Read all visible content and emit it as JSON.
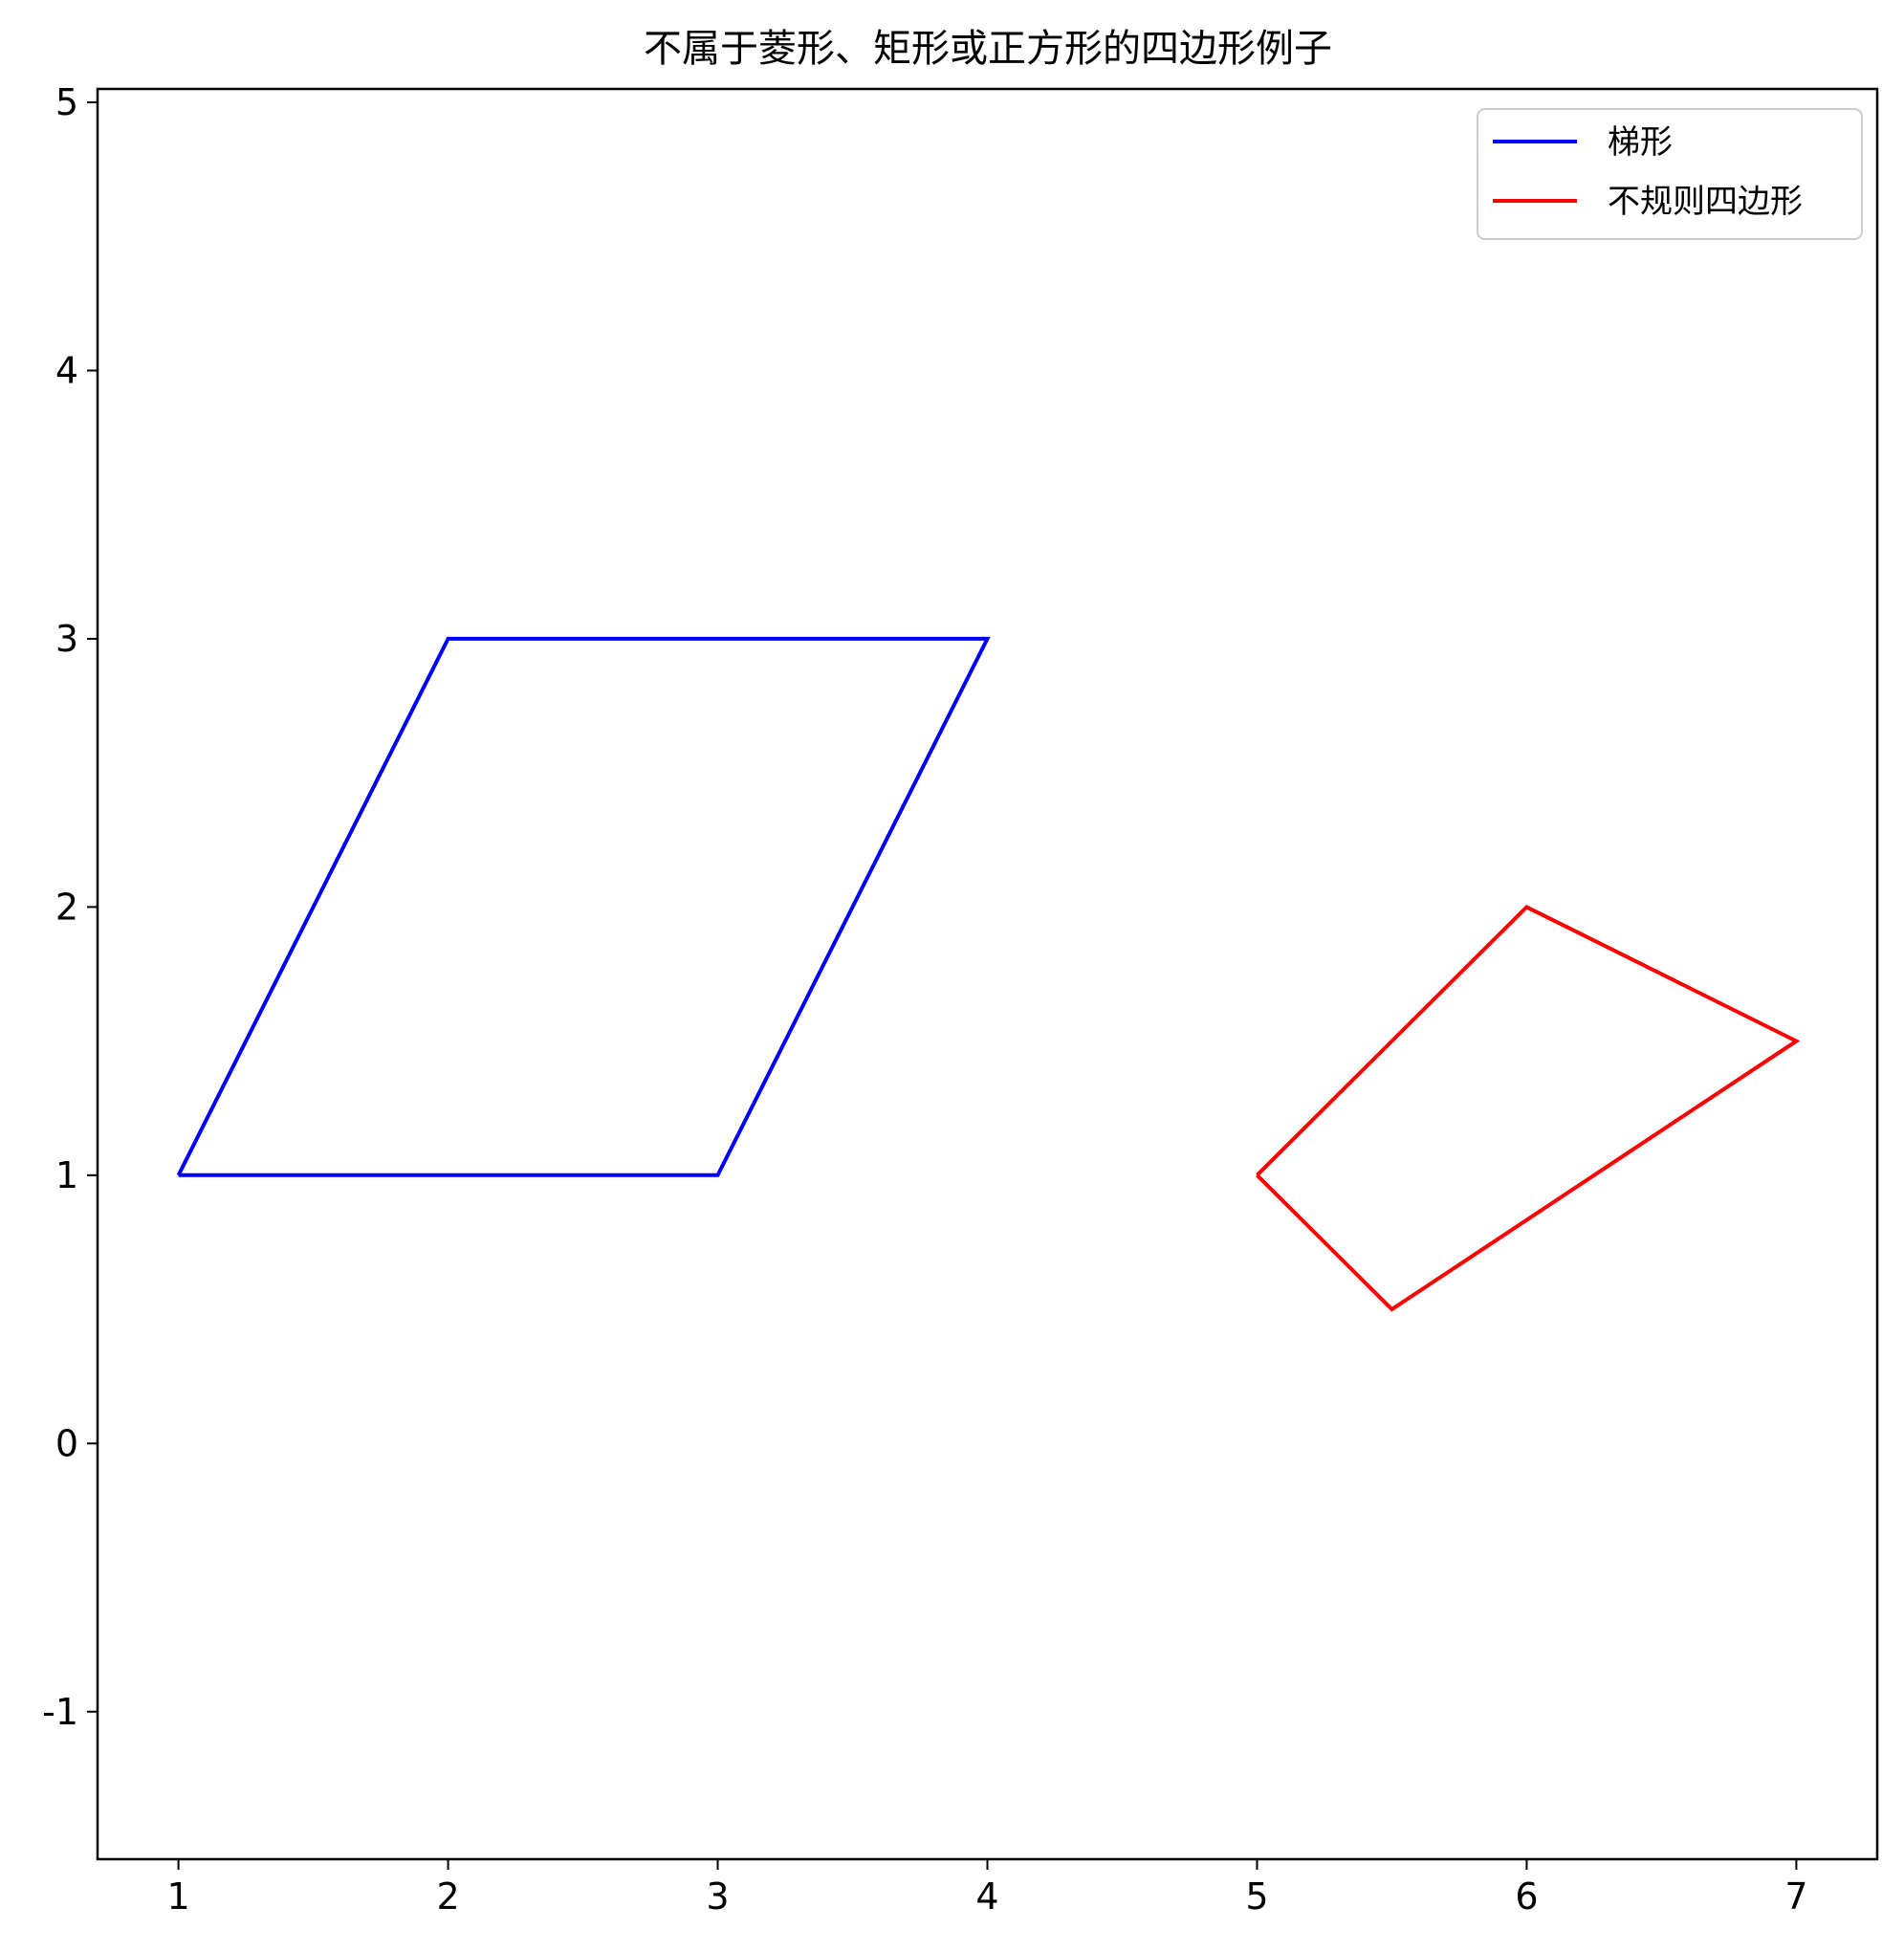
{
  "chart_data": {
    "type": "line",
    "title": "不属于菱形、矩形或正方形的四边形例子",
    "xlabel": "",
    "ylabel": "",
    "xlim": [
      0.7,
      7.3
    ],
    "ylim": [
      -1.55,
      5.05
    ],
    "xticks": [
      1,
      2,
      3,
      4,
      5,
      6,
      7
    ],
    "yticks": [
      -1,
      0,
      1,
      2,
      3,
      4,
      5
    ],
    "grid": false,
    "legend_position": "top-right",
    "series": [
      {
        "name": "梯形",
        "color": "#0000ff",
        "x": [
          1,
          3,
          4,
          2,
          1
        ],
        "y": [
          1,
          1,
          3,
          3,
          1
        ]
      },
      {
        "name": "不规则四边形",
        "color": "#ff0000",
        "x": [
          5,
          5.5,
          7,
          6,
          5
        ],
        "y": [
          1,
          0.5,
          1.5,
          2,
          1
        ]
      }
    ]
  }
}
